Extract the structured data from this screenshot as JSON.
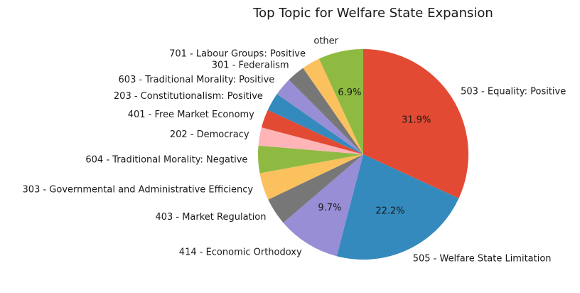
{
  "chart_data": {
    "type": "pie",
    "title": "Top Topic for Welfare State Expansion",
    "start_angle_deg": 90,
    "direction": "clockwise",
    "slices": [
      {
        "label": "503 - Equality: Positive",
        "value": 31.9,
        "pct_label": "31.9%",
        "color": "#E24A33"
      },
      {
        "label": "505 - Welfare State Limitation",
        "value": 22.2,
        "pct_label": "22.2%",
        "color": "#348ABD"
      },
      {
        "label": "414 - Economic Orthodoxy",
        "value": 9.7,
        "pct_label": "9.7%",
        "color": "#988ED5"
      },
      {
        "label": "403 - Market Regulation",
        "value": 4.2,
        "pct_label": "",
        "color": "#777777"
      },
      {
        "label": "303 - Governmental and Administrative Efficiency",
        "value": 4.2,
        "pct_label": "",
        "color": "#FBC15E"
      },
      {
        "label": "604 - Traditional Morality: Negative",
        "value": 4.2,
        "pct_label": "",
        "color": "#8EBA42"
      },
      {
        "label": "202 - Democracy",
        "value": 2.8,
        "pct_label": "",
        "color": "#FFB5B8"
      },
      {
        "label": "401 - Free Market Economy",
        "value": 2.8,
        "pct_label": "",
        "color": "#E24A33"
      },
      {
        "label": "203 - Constitutionalism: Positive",
        "value": 2.8,
        "pct_label": "",
        "color": "#348ABD"
      },
      {
        "label": "603 - Traditional Morality: Positive",
        "value": 2.8,
        "pct_label": "",
        "color": "#988ED5"
      },
      {
        "label": "301 - Federalism",
        "value": 2.8,
        "pct_label": "",
        "color": "#777777"
      },
      {
        "label": "701 - Labour Groups: Positive",
        "value": 2.8,
        "pct_label": "",
        "color": "#FBC15E"
      },
      {
        "label": "other",
        "value": 6.9,
        "pct_label": "6.9%",
        "color": "#8EBA42"
      }
    ]
  }
}
